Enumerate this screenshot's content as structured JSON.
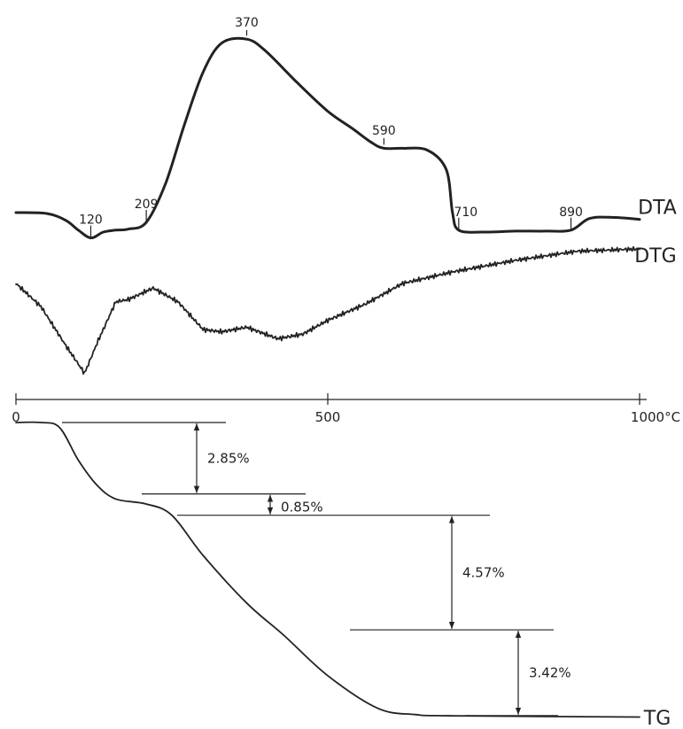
{
  "chart_data": {
    "type": "line",
    "x_unit": "°C",
    "x_ticks": [
      {
        "value": 0,
        "label": "0"
      },
      {
        "value": 500,
        "label": "500"
      },
      {
        "value": 1000,
        "label": "1000°C"
      }
    ],
    "xlim": [
      0,
      1000
    ],
    "grid": false,
    "legend": "none",
    "series": [
      {
        "name": "DTA",
        "points": [
          [
            0,
            0
          ],
          [
            50,
            -0.05
          ],
          [
            80,
            -0.4
          ],
          [
            100,
            -0.9
          ],
          [
            120,
            -1.3
          ],
          [
            140,
            -1.0
          ],
          [
            160,
            -0.9
          ],
          [
            180,
            -0.85
          ],
          [
            209,
            -0.5
          ],
          [
            240,
            1.5
          ],
          [
            270,
            4.5
          ],
          [
            300,
            7.2
          ],
          [
            330,
            8.7
          ],
          [
            370,
            8.9
          ],
          [
            400,
            8.3
          ],
          [
            450,
            6.7
          ],
          [
            500,
            5.2
          ],
          [
            540,
            4.3
          ],
          [
            570,
            3.6
          ],
          [
            590,
            3.3
          ],
          [
            620,
            3.3
          ],
          [
            660,
            3.2
          ],
          [
            690,
            2.2
          ],
          [
            700,
            0
          ],
          [
            710,
            -0.9
          ],
          [
            750,
            -1.0
          ],
          [
            800,
            -0.95
          ],
          [
            850,
            -0.95
          ],
          [
            890,
            -0.9
          ],
          [
            920,
            -0.3
          ],
          [
            960,
            -0.25
          ],
          [
            1000,
            -0.35
          ]
        ],
        "peak_labels": [
          {
            "x": 120,
            "label": "120"
          },
          {
            "x": 209,
            "label": "209"
          },
          {
            "x": 370,
            "label": "370"
          },
          {
            "x": 590,
            "label": "590"
          },
          {
            "x": 710,
            "label": "710"
          },
          {
            "x": 890,
            "label": "890"
          }
        ]
      },
      {
        "name": "DTG",
        "points": [
          [
            0,
            0
          ],
          [
            40,
            -1.0
          ],
          [
            80,
            -2.7
          ],
          [
            110,
            -3.9
          ],
          [
            130,
            -2.6
          ],
          [
            160,
            -0.8
          ],
          [
            180,
            -0.7
          ],
          [
            220,
            -0.2
          ],
          [
            260,
            -0.8
          ],
          [
            300,
            -2.0
          ],
          [
            330,
            -2.1
          ],
          [
            370,
            -1.9
          ],
          [
            420,
            -2.4
          ],
          [
            460,
            -2.2
          ],
          [
            500,
            -1.6
          ],
          [
            560,
            -0.9
          ],
          [
            620,
            0.0
          ],
          [
            700,
            0.5
          ],
          [
            800,
            1.0
          ],
          [
            900,
            1.4
          ],
          [
            1000,
            1.5
          ]
        ]
      },
      {
        "name": "TG",
        "unit": "%",
        "points": [
          [
            0,
            0
          ],
          [
            40,
            0
          ],
          [
            70,
            -0.2
          ],
          [
            100,
            -1.5
          ],
          [
            130,
            -2.5
          ],
          [
            160,
            -3.05
          ],
          [
            209,
            -3.25
          ],
          [
            250,
            -3.7
          ],
          [
            300,
            -5.3
          ],
          [
            370,
            -7.2
          ],
          [
            430,
            -8.5
          ],
          [
            500,
            -10.1
          ],
          [
            580,
            -11.4
          ],
          [
            640,
            -11.65
          ],
          [
            700,
            -11.7
          ],
          [
            1000,
            -11.75
          ]
        ],
        "mass_losses": [
          {
            "label": "2.85%",
            "value": 2.85
          },
          {
            "label": "0.85%",
            "value": 0.85
          },
          {
            "label": "4.57%",
            "value": 4.57
          },
          {
            "label": "3.42%",
            "value": 3.42
          }
        ]
      }
    ]
  }
}
